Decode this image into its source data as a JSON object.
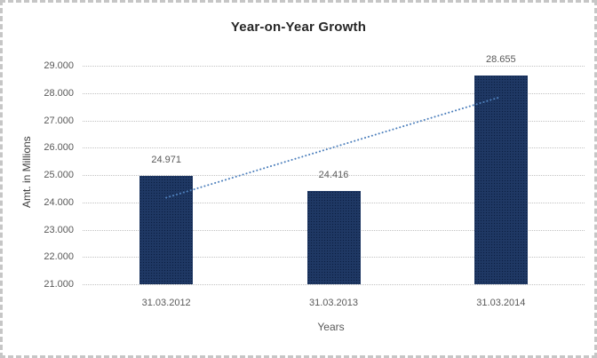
{
  "frame": {
    "border_color": "#c6c6c6",
    "background": "#ffffff"
  },
  "chart_data": {
    "type": "bar",
    "title": "Year-on-Year Growth",
    "xlabel": "Years",
    "ylabel": "Amt. in Millions",
    "categories": [
      "31.03.2012",
      "31.03.2013",
      "31.03.2014"
    ],
    "values": [
      24.971,
      24.416,
      28.655
    ],
    "value_labels": [
      "24.971",
      "24.416",
      "28.655"
    ],
    "ylim": [
      21,
      29
    ],
    "ytick_labels": [
      "21.000",
      "22.000",
      "23.000",
      "24.000",
      "25.000",
      "26.000",
      "27.000",
      "28.000",
      "29.000"
    ],
    "grid": true,
    "legend": false,
    "trendline": {
      "type": "linear",
      "style": "dotted",
      "start_value": 24.17,
      "end_value": 27.86,
      "color": "#4f81bd"
    },
    "colors": {
      "bar": "#1f3864",
      "bar_pattern": "#0c1f42",
      "grid": "#c2c2c2",
      "tick_text": "#595959",
      "title_text": "#262626",
      "axis_title_text": "#3d3d3d"
    }
  }
}
